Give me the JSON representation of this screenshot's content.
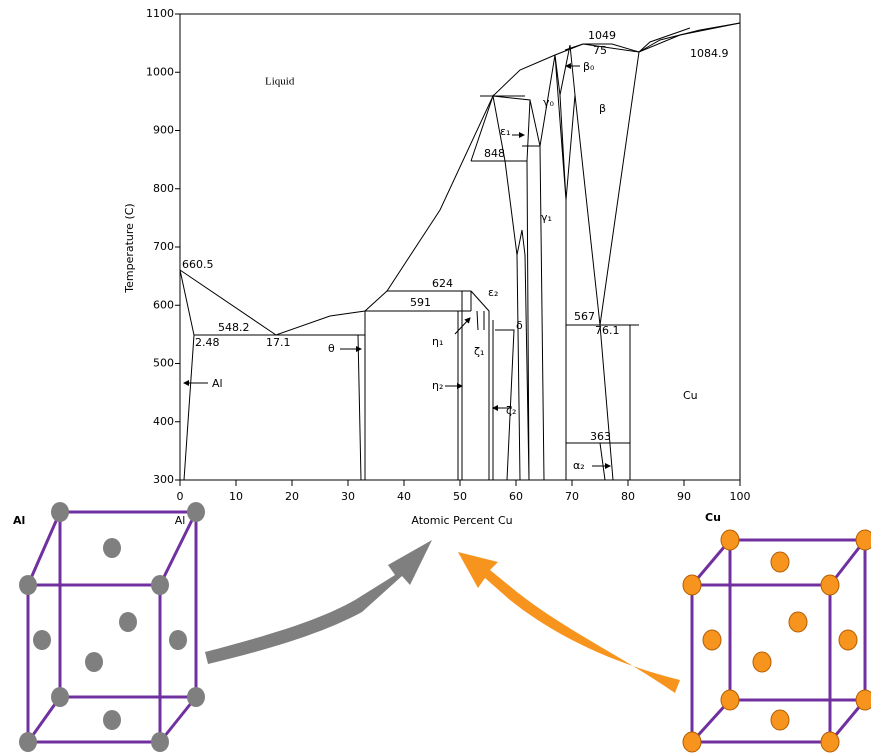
{
  "figure": {
    "y_axis": {
      "label": "Temperature (C)",
      "ticks": [
        300,
        400,
        500,
        600,
        700,
        800,
        900,
        1000,
        1100
      ]
    },
    "x_axis": {
      "label": "Atomic Percent Cu",
      "ticks": [
        0,
        10,
        20,
        30,
        40,
        50,
        60,
        70,
        80,
        90,
        100
      ],
      "end_label": "Al"
    },
    "annotations": [
      "Liquid",
      "660.5",
      "548.2",
      "2.48",
      "17.1",
      "624",
      "591",
      "848",
      "1049",
      "75",
      "1084.9",
      "567",
      "76.1",
      "363",
      "Cu",
      "Al",
      "θ",
      "η₁",
      "η₂",
      "ζ₁",
      "ζ₂",
      "δ",
      "ε₁",
      "ε₂",
      "γ₀",
      "γ₁",
      "β₀",
      "β",
      "α₂"
    ],
    "element_labels": [
      "Al",
      "Cu"
    ]
  }
}
